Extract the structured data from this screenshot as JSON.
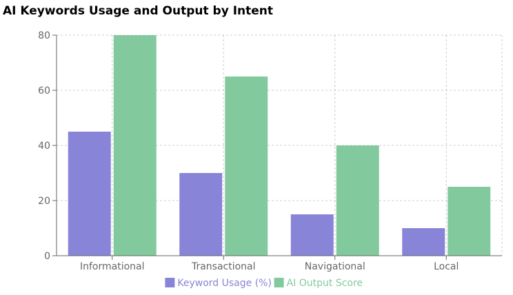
{
  "chart_data": {
    "type": "bar",
    "title": "AI Keywords Usage and Output by Intent",
    "categories": [
      "Informational",
      "Transactional",
      "Navigational",
      "Local"
    ],
    "series": [
      {
        "name": "Keyword Usage (%)",
        "values": [
          45,
          30,
          15,
          10
        ],
        "color": "#8884d8"
      },
      {
        "name": "AI Output Score",
        "values": [
          80,
          65,
          40,
          25
        ],
        "color": "#82ca9d"
      }
    ],
    "ylim": [
      0,
      80
    ],
    "yticks": [
      0,
      20,
      40,
      60,
      80
    ],
    "grid": true,
    "legend": "bottom-center"
  }
}
